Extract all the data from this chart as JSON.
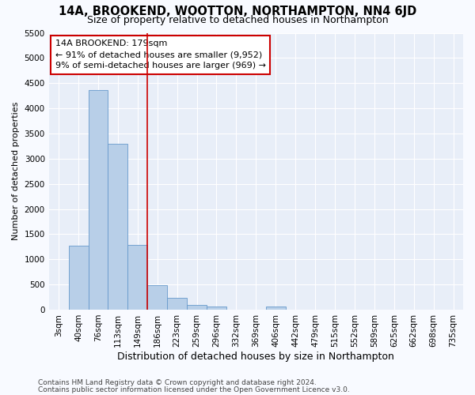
{
  "title": "14A, BROOKEND, WOOTTON, NORTHAMPTON, NN4 6JD",
  "subtitle": "Size of property relative to detached houses in Northampton",
  "xlabel": "Distribution of detached houses by size in Northampton",
  "ylabel": "Number of detached properties",
  "categories": [
    "3sqm",
    "40sqm",
    "76sqm",
    "113sqm",
    "149sqm",
    "186sqm",
    "223sqm",
    "259sqm",
    "296sqm",
    "332sqm",
    "369sqm",
    "406sqm",
    "442sqm",
    "479sqm",
    "515sqm",
    "552sqm",
    "589sqm",
    "625sqm",
    "662sqm",
    "698sqm",
    "735sqm"
  ],
  "values": [
    0,
    1270,
    4360,
    3300,
    1280,
    490,
    240,
    100,
    65,
    0,
    0,
    60,
    0,
    0,
    0,
    0,
    0,
    0,
    0,
    0,
    0
  ],
  "bar_color": "#b8cfe8",
  "bar_edge_color": "#6699cc",
  "highlight_line_color": "#cc0000",
  "annotation_line1": "14A BROOKEND: 179sqm",
  "annotation_line2": "← 91% of detached houses are smaller (9,952)",
  "annotation_line3": "9% of semi-detached houses are larger (969) →",
  "annotation_box_color": "#ffffff",
  "annotation_box_edge": "#cc0000",
  "ylim": [
    0,
    5500
  ],
  "yticks": [
    0,
    500,
    1000,
    1500,
    2000,
    2500,
    3000,
    3500,
    4000,
    4500,
    5000,
    5500
  ],
  "footer1": "Contains HM Land Registry data © Crown copyright and database right 2024.",
  "footer2": "Contains public sector information licensed under the Open Government Licence v3.0.",
  "bg_color": "#f8faff",
  "plot_bg_color": "#e8eef8",
  "grid_color": "#ffffff",
  "title_fontsize": 10.5,
  "subtitle_fontsize": 9,
  "xlabel_fontsize": 9,
  "ylabel_fontsize": 8,
  "tick_fontsize": 7.5,
  "footer_fontsize": 6.5,
  "line_x_index": 5
}
